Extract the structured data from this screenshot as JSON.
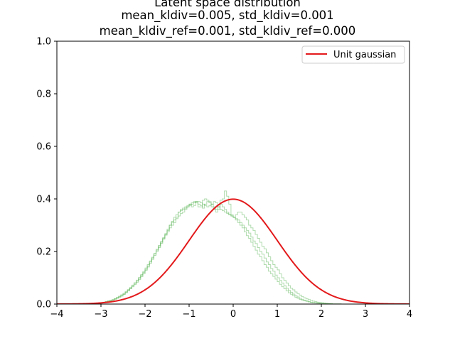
{
  "chart_data": {
    "type": "line",
    "title": [
      "Latent space distribution",
      "mean_kldiv=0.005, std_kldiv=0.001",
      "mean_kldiv_ref=0.001, std_kldiv_ref=0.000"
    ],
    "xlabel": "",
    "ylabel": "",
    "xlim": [
      -4,
      4
    ],
    "ylim": [
      0,
      1.0
    ],
    "xticks": [
      -4,
      -3,
      -2,
      -1,
      0,
      1,
      2,
      3,
      4
    ],
    "yticks": [
      0.0,
      0.2,
      0.4,
      0.6,
      0.8,
      1.0
    ],
    "xtick_labels": [
      "−4",
      "−3",
      "−2",
      "−1",
      "0",
      "1",
      "2",
      "3",
      "4"
    ],
    "ytick_labels": [
      "0.0",
      "0.2",
      "0.4",
      "0.6",
      "0.8",
      "1.0"
    ],
    "grid": false,
    "legend_position": "top-right",
    "series": [
      {
        "name": "Unit gaussian",
        "kind": "curve",
        "color": "#e31a1c",
        "function": "standard_normal_pdf",
        "x_range": [
          -4,
          4
        ]
      }
    ],
    "histograms": {
      "kind": "step-histogram",
      "color": "#4daf4a",
      "opacity": 0.45,
      "count": 3,
      "bin_edges_range": [
        -3,
        3
      ],
      "bins": 120,
      "curves": [
        {
          "values": [
            0.005,
            0.006,
            0.008,
            0.011,
            0.012,
            0.015,
            0.018,
            0.022,
            0.026,
            0.03,
            0.036,
            0.043,
            0.05,
            0.058,
            0.066,
            0.074,
            0.083,
            0.093,
            0.104,
            0.115,
            0.128,
            0.141,
            0.155,
            0.17,
            0.185,
            0.2,
            0.215,
            0.231,
            0.247,
            0.262,
            0.275,
            0.29,
            0.3,
            0.31,
            0.325,
            0.335,
            0.345,
            0.35,
            0.36,
            0.37,
            0.38,
            0.385,
            0.39,
            0.385,
            0.37,
            0.37,
            0.395,
            0.4,
            0.395,
            0.39,
            0.38,
            0.37,
            0.36,
            0.36,
            0.395,
            0.4,
            0.43,
            0.41,
            0.38,
            0.34,
            0.33,
            0.34,
            0.35,
            0.35,
            0.34,
            0.33,
            0.32,
            0.3,
            0.29,
            0.28,
            0.265,
            0.25,
            0.235,
            0.22,
            0.21,
            0.195,
            0.18,
            0.165,
            0.15,
            0.14,
            0.13,
            0.115,
            0.1,
            0.09,
            0.08,
            0.07,
            0.06,
            0.054,
            0.046,
            0.04,
            0.034,
            0.028,
            0.024,
            0.02,
            0.017,
            0.014,
            0.011,
            0.009,
            0.007,
            0.006,
            0.005,
            0.004,
            0.003,
            0.002,
            0.002,
            0.001,
            0.001,
            0.001,
            0.001,
            0.0,
            0.0,
            0.0,
            0.0,
            0.0,
            0.0,
            0.0,
            0.0,
            0.0,
            0.0,
            0.0
          ]
        },
        {
          "values": [
            0.004,
            0.006,
            0.009,
            0.01,
            0.013,
            0.016,
            0.02,
            0.024,
            0.028,
            0.033,
            0.038,
            0.045,
            0.052,
            0.06,
            0.069,
            0.078,
            0.088,
            0.098,
            0.109,
            0.12,
            0.132,
            0.145,
            0.16,
            0.175,
            0.19,
            0.205,
            0.22,
            0.235,
            0.25,
            0.265,
            0.28,
            0.3,
            0.31,
            0.32,
            0.33,
            0.35,
            0.36,
            0.365,
            0.37,
            0.375,
            0.38,
            0.37,
            0.375,
            0.39,
            0.38,
            0.375,
            0.365,
            0.38,
            0.39,
            0.385,
            0.37,
            0.36,
            0.35,
            0.37,
            0.38,
            0.37,
            0.36,
            0.35,
            0.34,
            0.335,
            0.33,
            0.325,
            0.32,
            0.31,
            0.3,
            0.29,
            0.28,
            0.27,
            0.255,
            0.24,
            0.23,
            0.215,
            0.2,
            0.19,
            0.175,
            0.16,
            0.15,
            0.135,
            0.125,
            0.11,
            0.1,
            0.09,
            0.08,
            0.07,
            0.06,
            0.052,
            0.045,
            0.038,
            0.032,
            0.027,
            0.022,
            0.018,
            0.015,
            0.012,
            0.009,
            0.007,
            0.006,
            0.005,
            0.004,
            0.003,
            0.002,
            0.002,
            0.001,
            0.001,
            0.001,
            0.0,
            0.0,
            0.0,
            0.0,
            0.0,
            0.0,
            0.0,
            0.0,
            0.0,
            0.0,
            0.0,
            0.0,
            0.0,
            0.0,
            0.0
          ]
        },
        {
          "values": [
            0.005,
            0.007,
            0.009,
            0.012,
            0.014,
            0.017,
            0.021,
            0.025,
            0.03,
            0.035,
            0.041,
            0.048,
            0.055,
            0.063,
            0.072,
            0.081,
            0.091,
            0.101,
            0.112,
            0.124,
            0.137,
            0.15,
            0.164,
            0.178,
            0.193,
            0.208,
            0.223,
            0.238,
            0.253,
            0.268,
            0.285,
            0.3,
            0.315,
            0.33,
            0.34,
            0.35,
            0.355,
            0.36,
            0.365,
            0.37,
            0.375,
            0.38,
            0.385,
            0.39,
            0.39,
            0.385,
            0.38,
            0.375,
            0.37,
            0.375,
            0.38,
            0.39,
            0.385,
            0.37,
            0.36,
            0.355,
            0.35,
            0.345,
            0.34,
            0.335,
            0.33,
            0.32,
            0.31,
            0.3,
            0.29,
            0.275,
            0.26,
            0.25,
            0.235,
            0.22,
            0.205,
            0.19,
            0.18,
            0.165,
            0.15,
            0.14,
            0.125,
            0.115,
            0.105,
            0.095,
            0.085,
            0.075,
            0.066,
            0.058,
            0.05,
            0.043,
            0.037,
            0.031,
            0.026,
            0.022,
            0.018,
            0.015,
            0.012,
            0.01,
            0.008,
            0.006,
            0.005,
            0.004,
            0.003,
            0.002,
            0.002,
            0.001,
            0.001,
            0.001,
            0.0,
            0.0,
            0.0,
            0.0,
            0.0,
            0.0,
            0.0,
            0.0,
            0.0,
            0.0,
            0.0,
            0.0,
            0.0,
            0.0,
            0.0,
            0.0
          ]
        }
      ]
    }
  },
  "legend": {
    "label": "Unit gaussian"
  }
}
